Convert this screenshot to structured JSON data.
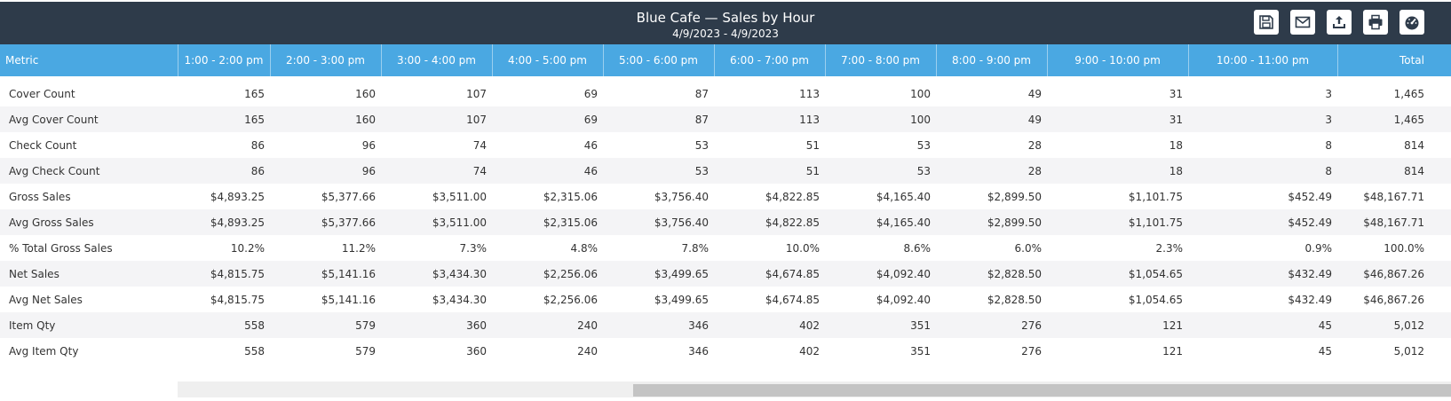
{
  "header": {
    "title": "Blue Cafe — Sales by Hour",
    "date_range": "4/9/2023 - 4/9/2023",
    "toolbar": [
      {
        "name": "save-icon"
      },
      {
        "name": "email-icon"
      },
      {
        "name": "export-icon"
      },
      {
        "name": "print-icon"
      },
      {
        "name": "dashboard-icon"
      }
    ]
  },
  "table": {
    "columns": [
      "Metric",
      "1:00 - 2:00 pm",
      "2:00 - 3:00 pm",
      "3:00 - 4:00 pm",
      "4:00 - 5:00 pm",
      "5:00 - 6:00 pm",
      "6:00 - 7:00 pm",
      "7:00 - 8:00 pm",
      "8:00 - 9:00 pm",
      "9:00 - 10:00 pm",
      "10:00 - 11:00 pm",
      "Total"
    ],
    "rows": [
      [
        "Cover Count",
        "165",
        "160",
        "107",
        "69",
        "87",
        "113",
        "100",
        "49",
        "31",
        "3",
        "1,465"
      ],
      [
        "Avg Cover Count",
        "165",
        "160",
        "107",
        "69",
        "87",
        "113",
        "100",
        "49",
        "31",
        "3",
        "1,465"
      ],
      [
        "Check Count",
        "86",
        "96",
        "74",
        "46",
        "53",
        "51",
        "53",
        "28",
        "18",
        "8",
        "814"
      ],
      [
        "Avg Check Count",
        "86",
        "96",
        "74",
        "46",
        "53",
        "51",
        "53",
        "28",
        "18",
        "8",
        "814"
      ],
      [
        "Gross Sales",
        "$4,893.25",
        "$5,377.66",
        "$3,511.00",
        "$2,315.06",
        "$3,756.40",
        "$4,822.85",
        "$4,165.40",
        "$2,899.50",
        "$1,101.75",
        "$452.49",
        "$48,167.71"
      ],
      [
        "Avg Gross Sales",
        "$4,893.25",
        "$5,377.66",
        "$3,511.00",
        "$2,315.06",
        "$3,756.40",
        "$4,822.85",
        "$4,165.40",
        "$2,899.50",
        "$1,101.75",
        "$452.49",
        "$48,167.71"
      ],
      [
        "% Total Gross Sales",
        "10.2%",
        "11.2%",
        "7.3%",
        "4.8%",
        "7.8%",
        "10.0%",
        "8.6%",
        "6.0%",
        "2.3%",
        "0.9%",
        "100.0%"
      ],
      [
        "Net Sales",
        "$4,815.75",
        "$5,141.16",
        "$3,434.30",
        "$2,256.06",
        "$3,499.65",
        "$4,674.85",
        "$4,092.40",
        "$2,828.50",
        "$1,054.65",
        "$432.49",
        "$46,867.26"
      ],
      [
        "Avg Net Sales",
        "$4,815.75",
        "$5,141.16",
        "$3,434.30",
        "$2,256.06",
        "$3,499.65",
        "$4,674.85",
        "$4,092.40",
        "$2,828.50",
        "$1,054.65",
        "$432.49",
        "$46,867.26"
      ],
      [
        "Item Qty",
        "558",
        "579",
        "360",
        "240",
        "346",
        "402",
        "351",
        "276",
        "121",
        "45",
        "5,012"
      ],
      [
        "Avg Item Qty",
        "558",
        "579",
        "360",
        "240",
        "346",
        "402",
        "351",
        "276",
        "121",
        "45",
        "5,012"
      ]
    ]
  },
  "colors": {
    "title_bar": "#2e3b4a",
    "header_row": "#4aa8e2",
    "stripe": "#f4f4f6"
  }
}
